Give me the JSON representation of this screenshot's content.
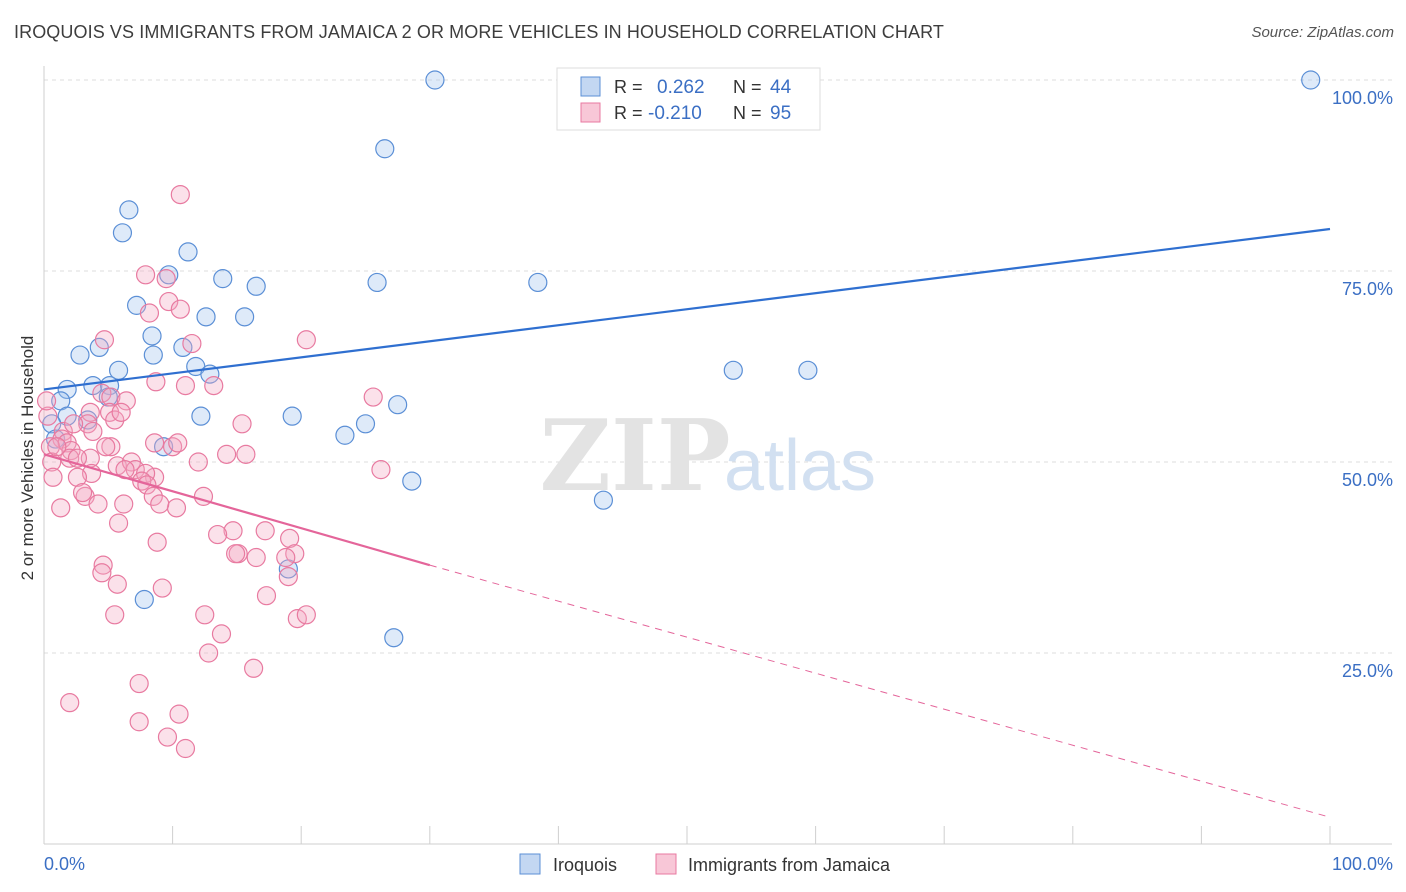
{
  "header": {
    "title": "IROQUOIS VS IMMIGRANTS FROM JAMAICA 2 OR MORE VEHICLES IN HOUSEHOLD CORRELATION CHART",
    "source": "Source: ZipAtlas.com"
  },
  "watermark": {
    "zip": "ZIP",
    "atlas": "atlas"
  },
  "legend_top": [
    {
      "r_label": "R =",
      "r_value": "0.262",
      "n_label": "N =",
      "n_value": "44",
      "color": "#5b8fd6"
    },
    {
      "r_label": "R =",
      "r_value": "-0.210",
      "n_label": "N =",
      "n_value": "95",
      "color": "#e87aa0"
    }
  ],
  "legend_bottom": [
    {
      "label": "Iroquois",
      "color": "#5b8fd6"
    },
    {
      "label": "Immigrants from Jamaica",
      "color": "#e87aa0"
    }
  ],
  "chart_data": {
    "type": "scatter",
    "title": "IROQUOIS VS IMMIGRANTS FROM JAMAICA 2 OR MORE VEHICLES IN HOUSEHOLD CORRELATION CHART",
    "xlabel": "",
    "ylabel": "2 or more Vehicles in Household",
    "xlim": [
      0,
      100
    ],
    "ylim": [
      0,
      100
    ],
    "x_tick_labels": [
      "0.0%",
      "100.0%"
    ],
    "y_tick_labels": [
      "25.0%",
      "50.0%",
      "75.0%",
      "100.0%"
    ],
    "y_ticks": [
      25,
      50,
      75,
      100
    ],
    "grid": true,
    "legend_position": "top-center",
    "series": [
      {
        "name": "Iroquois",
        "color": "#5b8fd6",
        "points": [
          [
            30.4,
            100
          ],
          [
            98.5,
            100
          ],
          [
            26.5,
            91
          ],
          [
            6.6,
            83
          ],
          [
            6.1,
            80
          ],
          [
            11.2,
            77.5
          ],
          [
            9.7,
            74.5
          ],
          [
            13.9,
            74
          ],
          [
            16.5,
            73
          ],
          [
            25.9,
            73.5
          ],
          [
            38.4,
            73.5
          ],
          [
            7.2,
            70.5
          ],
          [
            12.6,
            69
          ],
          [
            15.6,
            69
          ],
          [
            8.4,
            66.5
          ],
          [
            4.3,
            65
          ],
          [
            8.5,
            64
          ],
          [
            10.8,
            65
          ],
          [
            2.8,
            64
          ],
          [
            5.8,
            62
          ],
          [
            11.8,
            62.5
          ],
          [
            12.9,
            61.5
          ],
          [
            53.6,
            62
          ],
          [
            59.4,
            62
          ],
          [
            1.8,
            59.5
          ],
          [
            3.8,
            60
          ],
          [
            5.1,
            60
          ],
          [
            1.3,
            58
          ],
          [
            5.0,
            58.5
          ],
          [
            27.5,
            57.5
          ],
          [
            12.2,
            56
          ],
          [
            19.3,
            56
          ],
          [
            1.8,
            56
          ],
          [
            3.4,
            55.5
          ],
          [
            0.6,
            55
          ],
          [
            0.9,
            53
          ],
          [
            25.0,
            55
          ],
          [
            23.4,
            53.5
          ],
          [
            9.3,
            52
          ],
          [
            28.6,
            47.5
          ],
          [
            43.5,
            45
          ],
          [
            19.0,
            36
          ],
          [
            7.8,
            32
          ],
          [
            27.2,
            27
          ]
        ]
      },
      {
        "name": "Immigrants from Jamaica",
        "color": "#e87aa0",
        "points": [
          [
            10.6,
            85
          ],
          [
            7.9,
            74.5
          ],
          [
            9.5,
            74
          ],
          [
            9.7,
            71
          ],
          [
            10.6,
            70
          ],
          [
            8.2,
            69.5
          ],
          [
            4.7,
            66
          ],
          [
            11.5,
            65.5
          ],
          [
            20.4,
            66
          ],
          [
            8.7,
            60.5
          ],
          [
            4.5,
            59
          ],
          [
            5.2,
            58.5
          ],
          [
            6.4,
            58
          ],
          [
            25.6,
            58.5
          ],
          [
            0.3,
            56
          ],
          [
            3.6,
            56.5
          ],
          [
            5.1,
            56.5
          ],
          [
            5.5,
            55.5
          ],
          [
            15.4,
            55
          ],
          [
            3.4,
            55
          ],
          [
            3.8,
            54
          ],
          [
            1.5,
            54
          ],
          [
            1.4,
            53
          ],
          [
            1.8,
            52.5
          ],
          [
            0.5,
            52
          ],
          [
            2.1,
            51.5
          ],
          [
            5.2,
            52
          ],
          [
            8.6,
            52.5
          ],
          [
            10.0,
            52
          ],
          [
            10.4,
            52.5
          ],
          [
            14.2,
            51
          ],
          [
            2.0,
            50.5
          ],
          [
            0.6,
            50
          ],
          [
            3.6,
            50.5
          ],
          [
            5.7,
            49.5
          ],
          [
            6.8,
            50
          ],
          [
            7.1,
            49
          ],
          [
            8.6,
            48
          ],
          [
            7.9,
            48.5
          ],
          [
            7.6,
            47.5
          ],
          [
            8.0,
            47
          ],
          [
            0.7,
            48
          ],
          [
            26.2,
            49
          ],
          [
            3.7,
            48.5
          ],
          [
            2.6,
            48
          ],
          [
            3.2,
            45.5
          ],
          [
            8.5,
            45.5
          ],
          [
            4.2,
            44.5
          ],
          [
            6.2,
            44.5
          ],
          [
            12.4,
            45.5
          ],
          [
            1.3,
            44
          ],
          [
            10.3,
            44
          ],
          [
            5.8,
            42
          ],
          [
            14.7,
            41
          ],
          [
            17.2,
            41
          ],
          [
            13.5,
            40.5
          ],
          [
            19.1,
            40
          ],
          [
            8.8,
            39.5
          ],
          [
            15.1,
            38
          ],
          [
            14.9,
            38
          ],
          [
            19.5,
            38
          ],
          [
            18.8,
            37.5
          ],
          [
            4.6,
            36.5
          ],
          [
            4.5,
            35.5
          ],
          [
            5.7,
            34
          ],
          [
            9.2,
            33.5
          ],
          [
            17.3,
            32.5
          ],
          [
            5.5,
            30
          ],
          [
            12.5,
            30
          ],
          [
            19.7,
            29.5
          ],
          [
            20.4,
            30
          ],
          [
            13.8,
            27.5
          ],
          [
            12.8,
            25
          ],
          [
            16.3,
            23
          ],
          [
            7.4,
            21
          ],
          [
            2.0,
            18.5
          ],
          [
            10.5,
            17
          ],
          [
            7.4,
            16
          ],
          [
            9.6,
            14
          ],
          [
            11.0,
            12.5
          ],
          [
            0.2,
            58
          ],
          [
            1.0,
            52
          ],
          [
            2.3,
            55
          ],
          [
            6.0,
            56.5
          ],
          [
            4.8,
            52
          ],
          [
            9.0,
            44.5
          ],
          [
            11.0,
            60
          ],
          [
            16.5,
            37.5
          ],
          [
            13.2,
            60
          ],
          [
            6.3,
            49
          ],
          [
            12.0,
            50
          ],
          [
            15.7,
            51
          ],
          [
            19.0,
            35
          ],
          [
            2.6,
            50.5
          ],
          [
            3.0,
            46
          ]
        ]
      }
    ],
    "trendlines": [
      {
        "series": "Iroquois",
        "x1": 0,
        "y1": 59.5,
        "x2": 100,
        "y2": 80.5,
        "style": "solid"
      },
      {
        "series": "Immigrants from Jamaica",
        "x1": 0,
        "y1": 51,
        "x2": 30,
        "y2": 36.5,
        "style": "solid"
      },
      {
        "series": "Immigrants from Jamaica",
        "x1": 30,
        "y1": 36.5,
        "x2": 100,
        "y2": 3.5,
        "style": "dashed"
      }
    ]
  }
}
